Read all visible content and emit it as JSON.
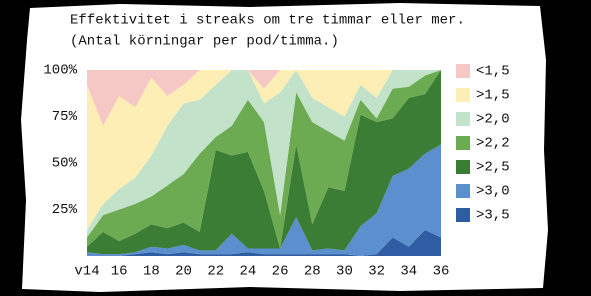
{
  "chart_data": {
    "type": "stacked_area_percent",
    "title": "Effektivitet i streaks om tre timmar eller mer.",
    "subtitle": "(Antal körningar per pod/timma.)",
    "categories": [
      "v14",
      null,
      "16",
      null,
      "18",
      null,
      "20",
      null,
      "22",
      null,
      "24",
      null,
      "26",
      null,
      "28",
      null,
      "30",
      null,
      "32",
      null,
      "34",
      null,
      "36"
    ],
    "series": [
      {
        "name": ">3,5",
        "color": "#2f5da3",
        "values": [
          0,
          0,
          0,
          1,
          2,
          1,
          2,
          1,
          1,
          1,
          2,
          1,
          1,
          1,
          1,
          1,
          1,
          0,
          1,
          10,
          5,
          14,
          10
        ]
      },
      {
        "name": ">3,0",
        "color": "#5b8fcd",
        "values": [
          2,
          1,
          1,
          1,
          3,
          3,
          4,
          2,
          2,
          11,
          2,
          3,
          3,
          20,
          2,
          3,
          2,
          16,
          22,
          33,
          42,
          41,
          50
        ]
      },
      {
        "name": ">2,5",
        "color": "#3b7d35",
        "values": [
          3,
          12,
          7,
          10,
          12,
          11,
          12,
          10,
          54,
          42,
          52,
          31,
          0,
          39,
          14,
          33,
          32,
          60,
          49,
          31,
          38,
          32,
          40
        ]
      },
      {
        "name": ">2,2",
        "color": "#6cab52",
        "values": [
          5,
          9,
          17,
          16,
          15,
          23,
          26,
          42,
          7,
          16,
          28,
          37,
          18,
          28,
          55,
          30,
          27,
          8,
          2,
          16,
          6,
          10,
          0
        ]
      },
      {
        "name": ">2,0",
        "color": "#c2e2ca",
        "values": [
          4,
          6,
          11,
          14,
          22,
          32,
          38,
          29,
          28,
          30,
          16,
          10,
          66,
          12,
          13,
          13,
          13,
          8,
          11,
          10,
          9,
          3,
          0
        ]
      },
      {
        "name": ">1,5",
        "color": "#fdeeb5",
        "values": [
          78,
          42,
          50,
          38,
          42,
          16,
          10,
          16,
          8,
          0,
          0,
          8,
          12,
          0,
          15,
          20,
          25,
          8,
          15,
          0,
          0,
          0,
          0
        ]
      },
      {
        "name": "<1,5",
        "color": "#f5c8c5",
        "values": [
          8,
          30,
          14,
          20,
          4,
          14,
          8,
          0,
          0,
          0,
          0,
          10,
          0,
          0,
          0,
          0,
          0,
          0,
          0,
          0,
          0,
          0,
          0
        ]
      }
    ],
    "ylim": [
      0,
      100
    ],
    "yticks": [
      {
        "value": 25,
        "label": "25%"
      },
      {
        "value": 50,
        "label": "50%"
      },
      {
        "value": 75,
        "label": "75%"
      },
      {
        "value": 100,
        "label": "100%"
      }
    ]
  }
}
